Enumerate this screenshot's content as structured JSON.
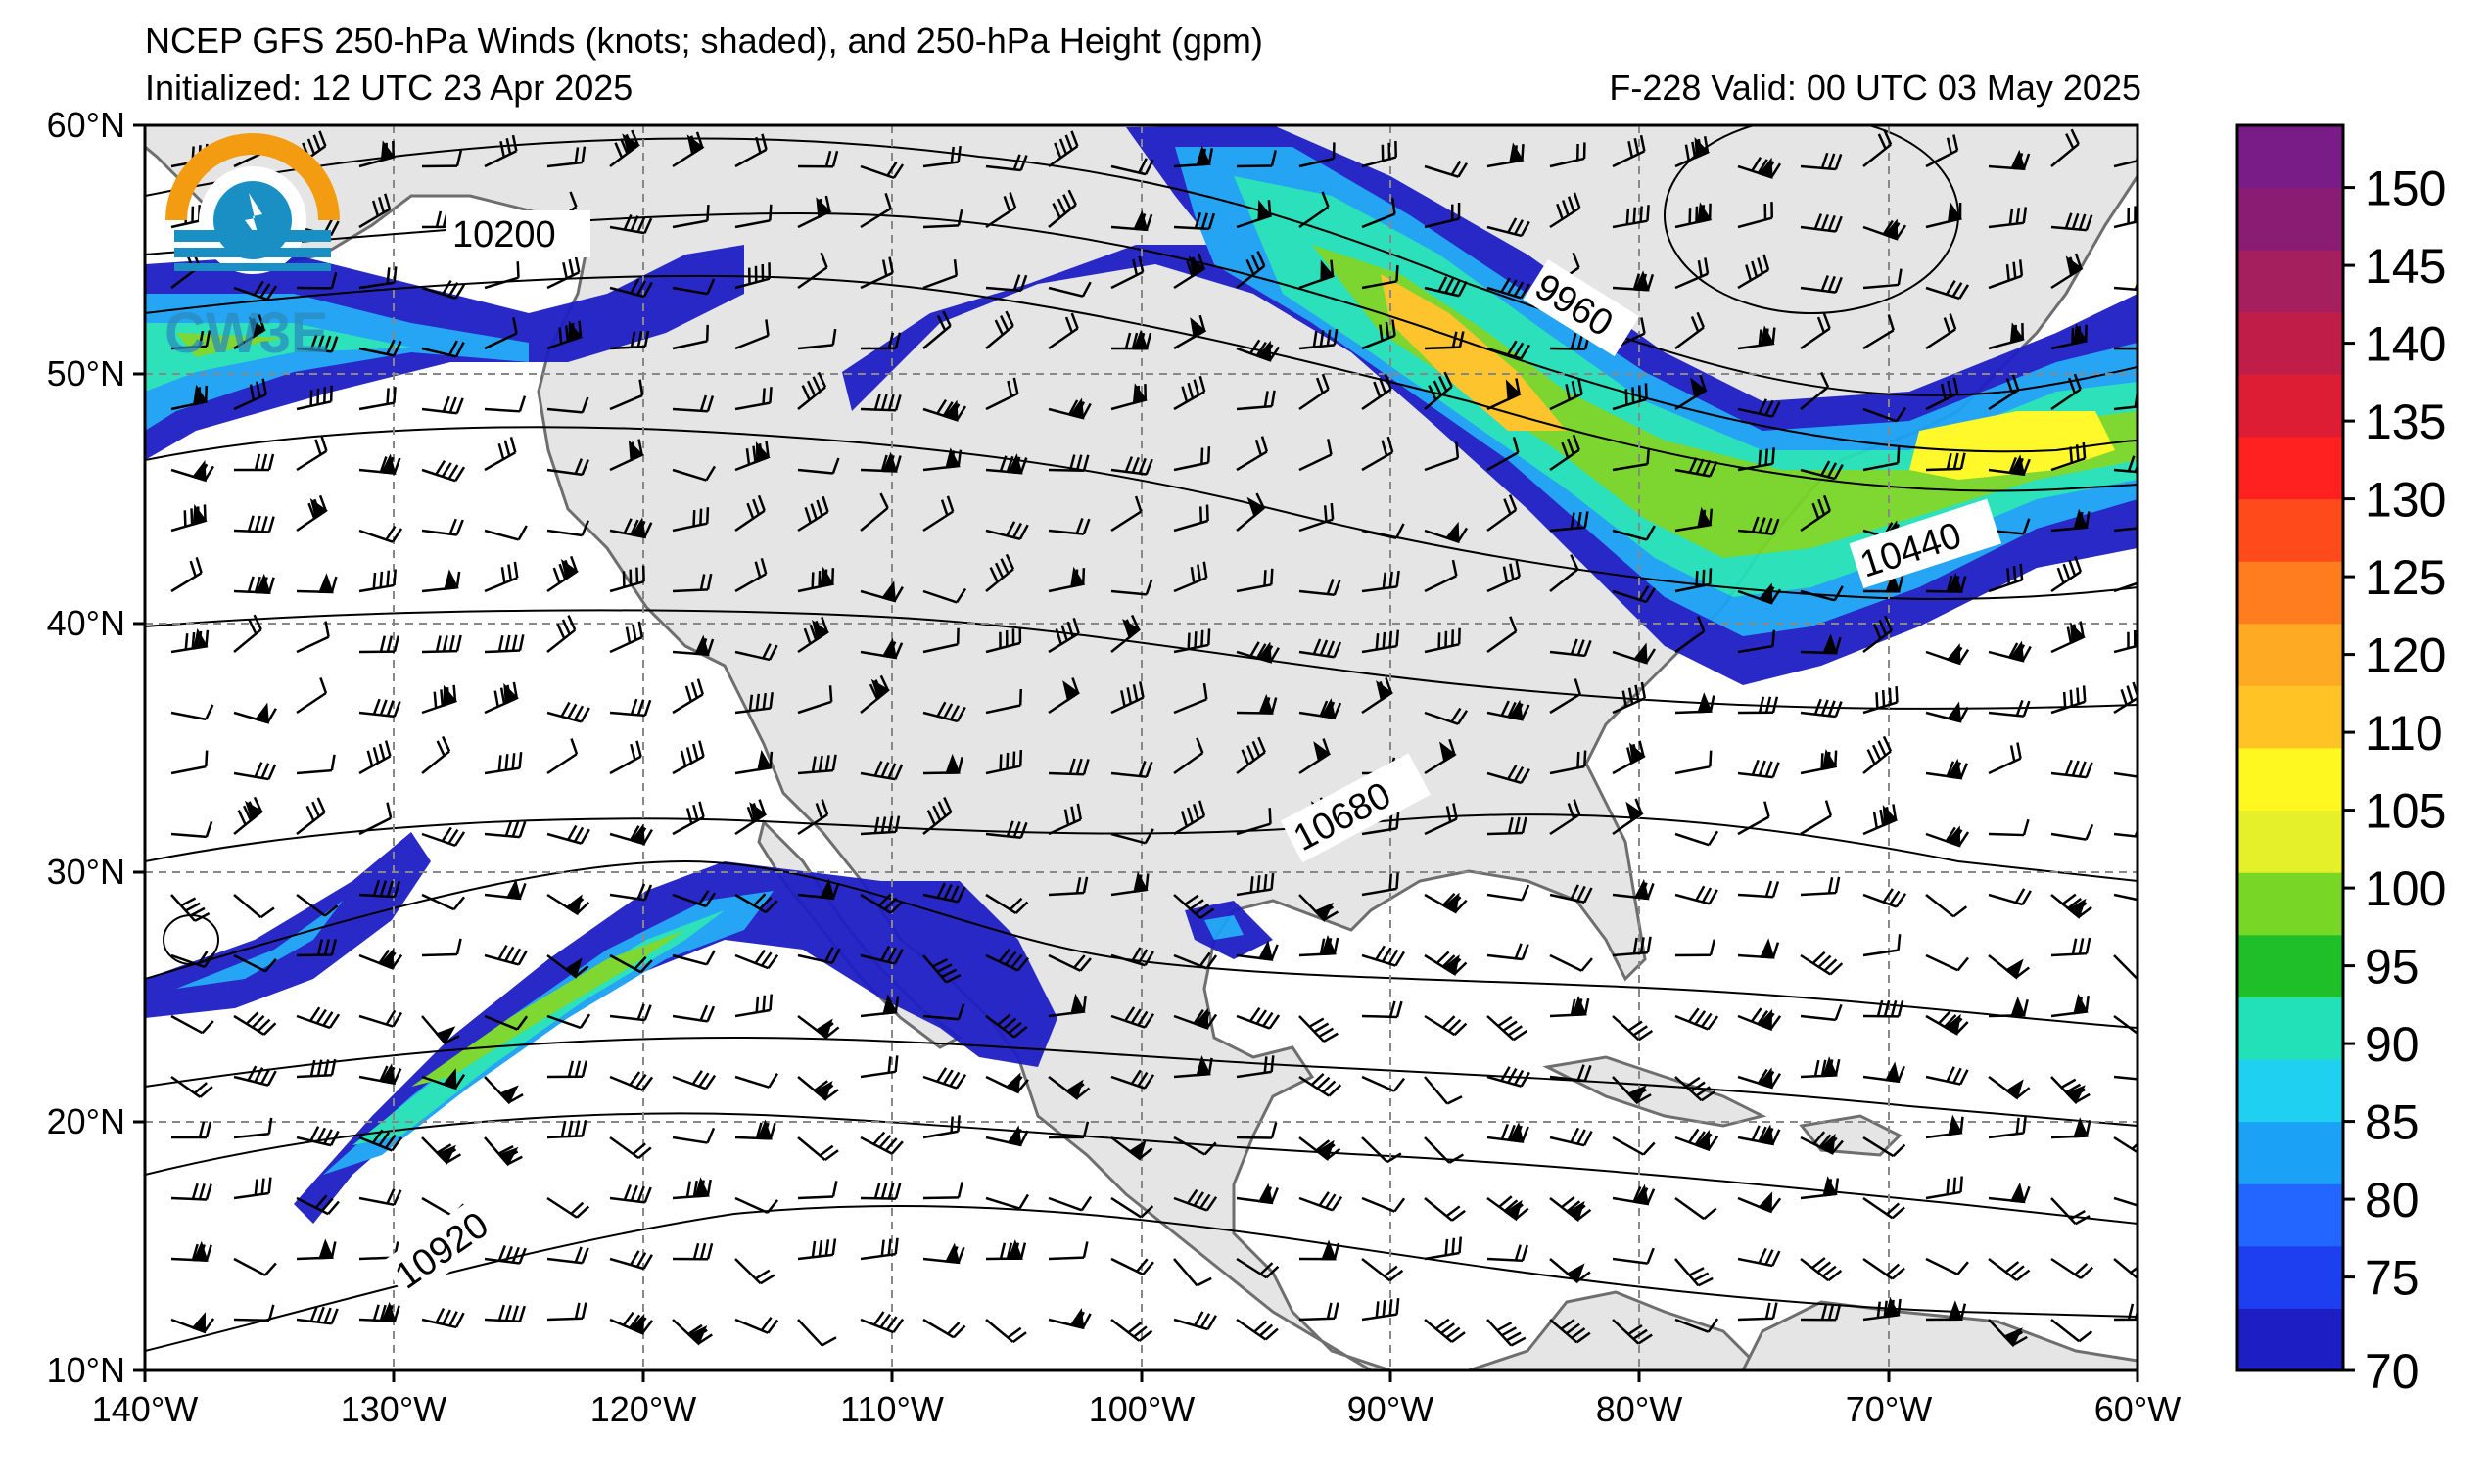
{
  "header": {
    "title": "NCEP GFS 250-hPa Winds (knots; shaded), and 250-hPa Height (gpm)",
    "initialized": "Initialized: 12 UTC 23 Apr 2025",
    "valid": "F-228  Valid: 00 UTC 03 May 2025"
  },
  "logo": {
    "text": "CW3E",
    "accent": "#f39c12",
    "blue": "#1a8fc4"
  },
  "map": {
    "lon_range": [
      -140,
      -60
    ],
    "lat_range": [
      10,
      60
    ],
    "lon_labels": [
      "140°W",
      "130°W",
      "120°W",
      "110°W",
      "100°W",
      "90°W",
      "80°W",
      "70°W",
      "60°W"
    ],
    "lat_labels": [
      "60°N",
      "50°N",
      "40°N",
      "30°N",
      "20°N",
      "10°N"
    ],
    "contour_labels": [
      "10200",
      "9960",
      "10440",
      "10680",
      "10920"
    ],
    "land_color": "#e5e5e5",
    "ocean_color": "#ffffff",
    "coast_color": "#6e6e6e"
  },
  "colorbar": {
    "ticks": [
      "150",
      "145",
      "140",
      "135",
      "130",
      "125",
      "120",
      "110",
      "105",
      "100",
      "95",
      "90",
      "85",
      "80",
      "75",
      "70"
    ],
    "colors": [
      "#1d1ec4",
      "#1e3ff0",
      "#2266ff",
      "#1ba1f5",
      "#20d0f0",
      "#22e0b8",
      "#1fbf2a",
      "#78d626",
      "#e5ef2a",
      "#fff820",
      "#ffc325",
      "#ffaa22",
      "#ff7d1f",
      "#ff4a1c",
      "#ff201f",
      "#dd1d33",
      "#c01e48",
      "#a51e5e",
      "#8b1c74",
      "#7a1c88"
    ]
  }
}
